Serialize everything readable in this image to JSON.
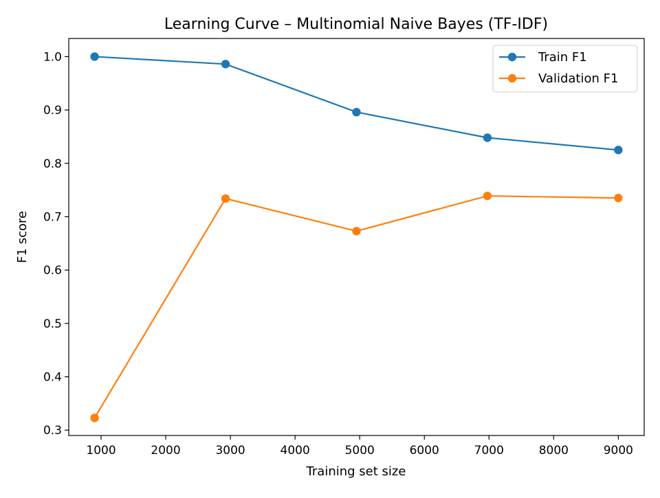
{
  "chart_data": {
    "type": "line",
    "title": "Learning Curve – Multinomial Naive Bayes (TF-IDF)",
    "xlabel": "Training set size",
    "ylabel": "F1 score",
    "xlim": [
      500,
      9400
    ],
    "ylim": [
      0.29,
      1.034
    ],
    "xticks": [
      1000,
      2000,
      3000,
      4000,
      5000,
      6000,
      7000,
      8000,
      9000
    ],
    "xtick_labels": [
      "1000",
      "2000",
      "3000",
      "4000",
      "5000",
      "6000",
      "7000",
      "8000",
      "9000"
    ],
    "yticks": [
      0.3,
      0.4,
      0.5,
      0.6,
      0.7,
      0.8,
      0.9,
      1.0
    ],
    "ytick_labels": [
      "0.3",
      "0.4",
      "0.5",
      "0.6",
      "0.7",
      "0.8",
      "0.9",
      "1.0"
    ],
    "x": [
      900,
      2925,
      4950,
      6975,
      9000
    ],
    "grid": false,
    "legend_position": "top-right",
    "series": [
      {
        "name": "Train F1",
        "color": "#1f77b4",
        "values": [
          1.0,
          0.986,
          0.896,
          0.848,
          0.825
        ]
      },
      {
        "name": "Validation F1",
        "color": "#ff7f0e",
        "values": [
          0.323,
          0.734,
          0.673,
          0.739,
          0.735
        ]
      }
    ]
  }
}
